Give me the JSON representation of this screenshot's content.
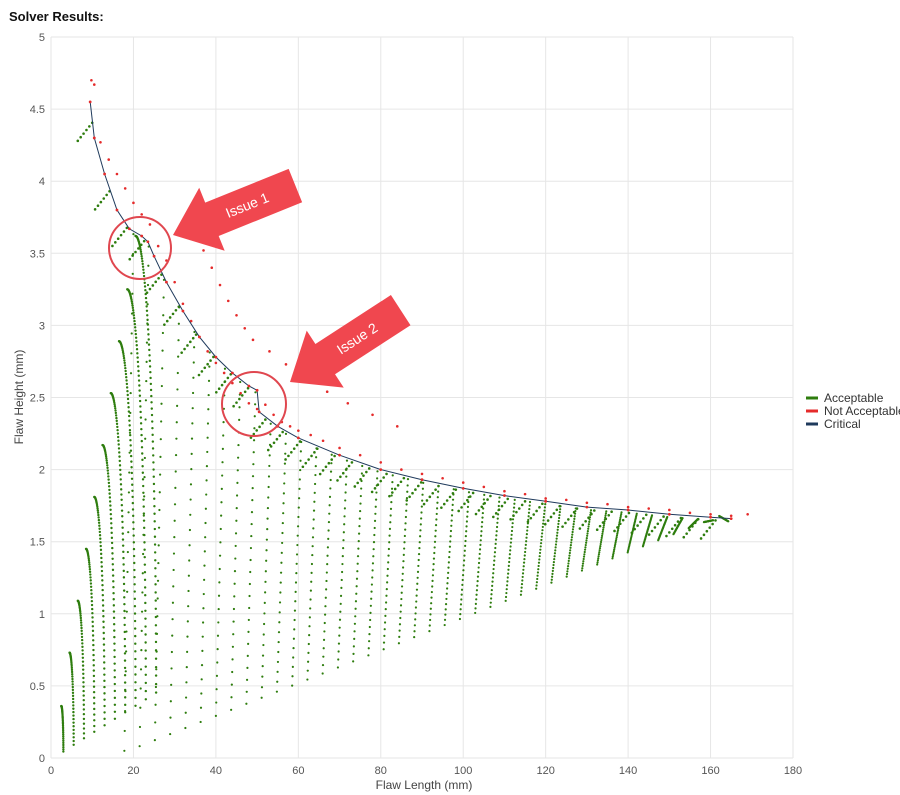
{
  "page": {
    "title": "Solver Results:"
  },
  "colors": {
    "acceptable": "#2e7d0e",
    "not_acceptable": "#e52b2b",
    "critical": "#1f3a5c",
    "grid": "#e6e6e6",
    "callout": "#f0474f",
    "callout_circle": "#e0474f"
  },
  "annotations": [
    {
      "label": "Issue 1",
      "target_x": 23.5,
      "target_y": 3.5
    },
    {
      "label": "Issue 2",
      "target_x": 51,
      "target_y": 2.5
    }
  ],
  "chart_data": {
    "type": "scatter",
    "xlabel": "Flaw Length (mm)",
    "ylabel": "Flaw Height (mm)",
    "xlim": [
      0,
      180
    ],
    "ylim": [
      0,
      5
    ],
    "x_ticks": [
      "0",
      "20",
      "40",
      "60",
      "80",
      "100",
      "120",
      "140",
      "160",
      "180"
    ],
    "y_ticks": [
      "0",
      "0.5",
      "1",
      "1.5",
      "2",
      "2.5",
      "3",
      "3.5",
      "4",
      "4.5",
      "5"
    ],
    "grid": true,
    "legend_position": "right",
    "legend": [
      "Acceptable",
      "Not Acceptable",
      "Critical"
    ],
    "series": [
      {
        "name": "Critical",
        "type": "line",
        "points": [
          [
            9.5,
            4.55
          ],
          [
            10.5,
            4.3
          ],
          [
            13,
            4.05
          ],
          [
            16,
            3.8
          ],
          [
            19,
            3.67
          ],
          [
            22,
            3.62
          ],
          [
            23.5,
            3.58
          ],
          [
            25,
            3.48
          ],
          [
            28,
            3.3
          ],
          [
            32,
            3.1
          ],
          [
            36,
            2.92
          ],
          [
            40,
            2.78
          ],
          [
            44,
            2.67
          ],
          [
            48,
            2.58
          ],
          [
            50,
            2.55
          ],
          [
            50.5,
            2.4
          ],
          [
            55,
            2.3
          ],
          [
            60,
            2.22
          ],
          [
            70,
            2.1
          ],
          [
            80,
            2.0
          ],
          [
            90,
            1.93
          ],
          [
            100,
            1.87
          ],
          [
            110,
            1.82
          ],
          [
            120,
            1.78
          ],
          [
            130,
            1.74
          ],
          [
            140,
            1.72
          ],
          [
            150,
            1.69
          ],
          [
            160,
            1.67
          ],
          [
            165,
            1.66
          ]
        ]
      },
      {
        "name": "Not Acceptable",
        "type": "scatter",
        "points": [
          [
            9.8,
            4.7
          ],
          [
            10.5,
            4.67
          ],
          [
            12,
            4.27
          ],
          [
            14,
            4.15
          ],
          [
            16,
            4.05
          ],
          [
            18,
            3.95
          ],
          [
            20,
            3.85
          ],
          [
            22,
            3.77
          ],
          [
            24,
            3.7
          ],
          [
            26,
            3.55
          ],
          [
            28,
            3.45
          ],
          [
            30,
            3.3
          ],
          [
            32,
            3.15
          ],
          [
            34,
            3.03
          ],
          [
            36,
            2.92
          ],
          [
            38,
            2.82
          ],
          [
            40,
            2.74
          ],
          [
            42,
            2.67
          ],
          [
            44,
            2.6
          ],
          [
            46,
            2.53
          ],
          [
            48,
            2.46
          ],
          [
            50,
            2.42
          ],
          [
            52,
            2.45
          ],
          [
            54,
            2.38
          ],
          [
            56,
            2.33
          ],
          [
            58,
            2.3
          ],
          [
            60,
            2.27
          ],
          [
            63,
            2.24
          ],
          [
            66,
            2.2
          ],
          [
            70,
            2.15
          ],
          [
            75,
            2.1
          ],
          [
            80,
            2.05
          ],
          [
            85,
            2.0
          ],
          [
            90,
            1.97
          ],
          [
            95,
            1.94
          ],
          [
            100,
            1.91
          ],
          [
            105,
            1.88
          ],
          [
            110,
            1.85
          ],
          [
            115,
            1.83
          ],
          [
            120,
            1.8
          ],
          [
            125,
            1.79
          ],
          [
            130,
            1.77
          ],
          [
            135,
            1.76
          ],
          [
            140,
            1.74
          ],
          [
            145,
            1.73
          ],
          [
            150,
            1.72
          ],
          [
            155,
            1.7
          ],
          [
            160,
            1.69
          ],
          [
            165,
            1.68
          ],
          [
            169,
            1.69
          ],
          [
            37,
            3.52
          ],
          [
            39,
            3.4
          ],
          [
            41,
            3.28
          ],
          [
            43,
            3.17
          ],
          [
            45,
            3.07
          ],
          [
            47,
            2.98
          ],
          [
            49,
            2.9
          ],
          [
            53,
            2.82
          ],
          [
            57,
            2.73
          ],
          [
            62,
            2.63
          ],
          [
            67,
            2.54
          ],
          [
            72,
            2.46
          ],
          [
            78,
            2.38
          ],
          [
            84,
            2.3
          ]
        ]
      },
      {
        "name": "Acceptable",
        "type": "scatter",
        "generator": "quarter-ellipse families",
        "families": [
          {
            "a": 2,
            "b": 0.36,
            "scale": 1.0
          },
          {
            "a": 4,
            "b": 0.73,
            "scale": 1.0
          },
          {
            "a": 6,
            "b": 1.09,
            "scale": 1.0
          },
          {
            "a": 8,
            "b": 1.45,
            "scale": 1.0
          },
          {
            "a": 10,
            "b": 1.81,
            "scale": 1.0
          },
          {
            "a": 12,
            "b": 2.17,
            "scale": 1.0
          },
          {
            "a": 14,
            "b": 2.53,
            "scale": 1.0
          },
          {
            "a": 16,
            "b": 2.89,
            "scale": 1.0
          },
          {
            "a": 18,
            "b": 3.25,
            "scale": 1.0
          },
          {
            "a": 20,
            "b": 3.62,
            "scale": 1.0
          }
        ]
      }
    ]
  }
}
